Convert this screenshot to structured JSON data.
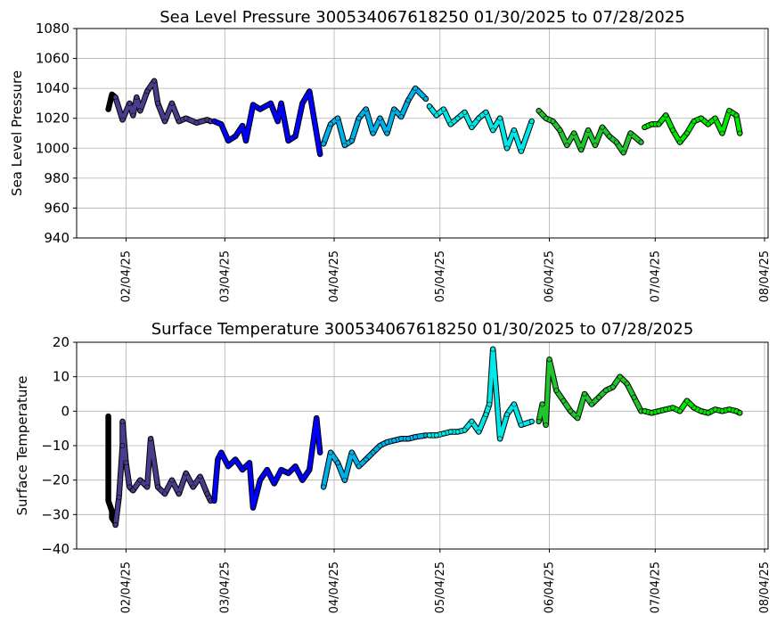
{
  "chart_data": [
    {
      "type": "scatter",
      "title": "Sea Level Pressure 300534067618250  01/30/2025 to 07/28/2025",
      "xlabel": "",
      "ylabel": "Sea Level Pressure",
      "xlim": [
        "2025-01-21",
        "2025-08-05"
      ],
      "ylim": [
        940,
        1080
      ],
      "yticks": [
        940,
        960,
        980,
        1000,
        1020,
        1040,
        1060,
        1080
      ],
      "xticks": [
        "02/04/25",
        "03/04/25",
        "04/04/25",
        "05/04/25",
        "06/04/25",
        "07/04/25",
        "08/04/25"
      ],
      "grid": true,
      "series": [
        {
          "color": "#000000",
          "x": [
            "2025-01-30",
            "2025-01-31",
            "2025-02-01"
          ],
          "y": [
            1026,
            1036,
            1034
          ]
        },
        {
          "color": "#483d8b",
          "x": [
            "2025-02-01",
            "2025-02-03",
            "2025-02-05",
            "2025-02-06",
            "2025-02-07",
            "2025-02-08",
            "2025-02-10",
            "2025-02-12",
            "2025-02-13",
            "2025-02-15",
            "2025-02-17",
            "2025-02-19",
            "2025-02-21",
            "2025-02-24",
            "2025-02-27",
            "2025-02-28"
          ],
          "y": [
            1034,
            1019,
            1030,
            1022,
            1034,
            1025,
            1038,
            1045,
            1030,
            1018,
            1030,
            1018,
            1020,
            1017,
            1019,
            1018
          ]
        },
        {
          "color": "#0000ff",
          "x": [
            "2025-03-01",
            "2025-03-03",
            "2025-03-05",
            "2025-03-07",
            "2025-03-09",
            "2025-03-10",
            "2025-03-12",
            "2025-03-14",
            "2025-03-17",
            "2025-03-19",
            "2025-03-20",
            "2025-03-22",
            "2025-03-24",
            "2025-03-26",
            "2025-03-28",
            "2025-03-31"
          ],
          "y": [
            1018,
            1016,
            1005,
            1008,
            1015,
            1005,
            1029,
            1026,
            1030,
            1018,
            1030,
            1005,
            1008,
            1030,
            1038,
            996
          ]
        },
        {
          "color": "#00b0e8",
          "x": [
            "2025-04-01",
            "2025-04-03",
            "2025-04-05",
            "2025-04-07",
            "2025-04-09",
            "2025-04-11",
            "2025-04-13",
            "2025-04-15",
            "2025-04-17",
            "2025-04-19",
            "2025-04-21",
            "2025-04-23",
            "2025-04-25",
            "2025-04-27",
            "2025-04-30"
          ],
          "y": [
            1003,
            1016,
            1020,
            1002,
            1005,
            1020,
            1026,
            1010,
            1020,
            1010,
            1026,
            1021,
            1032,
            1040,
            1033
          ]
        },
        {
          "color": "#00e8e8",
          "x": [
            "2025-05-01",
            "2025-05-03",
            "2025-05-05",
            "2025-05-07",
            "2025-05-09",
            "2025-05-11",
            "2025-05-13",
            "2025-05-15",
            "2025-05-17",
            "2025-05-19",
            "2025-05-21",
            "2025-05-23",
            "2025-05-25",
            "2025-05-27",
            "2025-05-30"
          ],
          "y": [
            1028,
            1022,
            1026,
            1016,
            1020,
            1024,
            1014,
            1020,
            1024,
            1012,
            1020,
            1000,
            1012,
            998,
            1018
          ]
        },
        {
          "color": "#22c42e",
          "x": [
            "2025-06-01",
            "2025-06-03",
            "2025-06-05",
            "2025-06-07",
            "2025-06-09",
            "2025-06-11",
            "2025-06-13",
            "2025-06-15",
            "2025-06-17",
            "2025-06-19",
            "2025-06-21",
            "2025-06-23",
            "2025-06-25",
            "2025-06-27",
            "2025-06-30"
          ],
          "y": [
            1025,
            1020,
            1018,
            1012,
            1002,
            1010,
            999,
            1012,
            1002,
            1014,
            1008,
            1004,
            997,
            1010,
            1004
          ]
        },
        {
          "color": "#00e800",
          "x": [
            "2025-07-01",
            "2025-07-03",
            "2025-07-05",
            "2025-07-07",
            "2025-07-09",
            "2025-07-11",
            "2025-07-13",
            "2025-07-15",
            "2025-07-17",
            "2025-07-19",
            "2025-07-21",
            "2025-07-23",
            "2025-07-25",
            "2025-07-27",
            "2025-07-28"
          ],
          "y": [
            1014,
            1016,
            1016,
            1022,
            1012,
            1004,
            1010,
            1018,
            1020,
            1016,
            1020,
            1010,
            1025,
            1022,
            1010
          ]
        }
      ]
    },
    {
      "type": "scatter",
      "title": "Surface Temperature 300534067618250  01/30/2025 to 07/28/2025",
      "xlabel": "",
      "ylabel": "Surface Temperature",
      "xlim": [
        "2025-01-21",
        "2025-08-05"
      ],
      "ylim": [
        -40,
        20
      ],
      "yticks": [
        -40,
        -30,
        -20,
        -10,
        0,
        10,
        20
      ],
      "xticks": [
        "02/04/25",
        "03/04/25",
        "04/04/25",
        "05/04/25",
        "06/04/25",
        "07/04/25",
        "08/04/25"
      ],
      "grid": true,
      "series": [
        {
          "color": "#000000",
          "x": [
            "2025-01-30",
            "2025-01-30",
            "2025-01-31",
            "2025-01-31",
            "2025-02-01",
            "2025-02-01"
          ],
          "y": [
            -1.5,
            -26,
            -29,
            -31,
            -32.5,
            -33
          ]
        },
        {
          "color": "#483d8b",
          "x": [
            "2025-02-01",
            "2025-02-02",
            "2025-02-03",
            "2025-02-03",
            "2025-02-04",
            "2025-02-05",
            "2025-02-06",
            "2025-02-08",
            "2025-02-10",
            "2025-02-11",
            "2025-02-13",
            "2025-02-15",
            "2025-02-17",
            "2025-02-19",
            "2025-02-21",
            "2025-02-23",
            "2025-02-25",
            "2025-02-27",
            "2025-02-28"
          ],
          "y": [
            -33,
            -25,
            -10,
            -3,
            -15,
            -22,
            -23,
            -20,
            -22,
            -8,
            -22,
            -24,
            -20,
            -24,
            -18,
            -22,
            -19,
            -24,
            -26
          ]
        },
        {
          "color": "#0000ff",
          "x": [
            "2025-03-01",
            "2025-03-02",
            "2025-03-03",
            "2025-03-05",
            "2025-03-07",
            "2025-03-09",
            "2025-03-11",
            "2025-03-12",
            "2025-03-14",
            "2025-03-16",
            "2025-03-18",
            "2025-03-20",
            "2025-03-22",
            "2025-03-24",
            "2025-03-26",
            "2025-03-28",
            "2025-03-30",
            "2025-03-31"
          ],
          "y": [
            -26,
            -14,
            -12,
            -16,
            -14,
            -17,
            -15,
            -28,
            -20,
            -17,
            -21,
            -17,
            -18,
            -16,
            -20,
            -17,
            -2,
            -12
          ]
        },
        {
          "color": "#00b0e8",
          "x": [
            "2025-04-01",
            "2025-04-03",
            "2025-04-05",
            "2025-04-07",
            "2025-04-09",
            "2025-04-11",
            "2025-04-13",
            "2025-04-15",
            "2025-04-17",
            "2025-04-19",
            "2025-04-21",
            "2025-04-23",
            "2025-04-25",
            "2025-04-27",
            "2025-04-30"
          ],
          "y": [
            -22,
            -12,
            -15,
            -20,
            -12,
            -16,
            -14,
            -12,
            -10,
            -9,
            -8.5,
            -8,
            -8,
            -7.5,
            -7
          ]
        },
        {
          "color": "#00e8e8",
          "x": [
            "2025-05-01",
            "2025-05-03",
            "2025-05-05",
            "2025-05-07",
            "2025-05-09",
            "2025-05-11",
            "2025-05-13",
            "2025-05-15",
            "2025-05-17",
            "2025-05-18",
            "2025-05-19",
            "2025-05-21",
            "2025-05-23",
            "2025-05-25",
            "2025-05-27",
            "2025-05-30"
          ],
          "y": [
            -7,
            -7,
            -6.5,
            -6,
            -6,
            -5.5,
            -3,
            -6,
            -1,
            2,
            18,
            -8,
            -1,
            2,
            -4,
            -3
          ]
        },
        {
          "color": "#22c42e",
          "x": [
            "2025-06-01",
            "2025-06-02",
            "2025-06-03",
            "2025-06-04",
            "2025-06-06",
            "2025-06-08",
            "2025-06-10",
            "2025-06-12",
            "2025-06-14",
            "2025-06-16",
            "2025-06-18",
            "2025-06-20",
            "2025-06-22",
            "2025-06-24",
            "2025-06-26",
            "2025-06-28",
            "2025-06-30"
          ],
          "y": [
            -3,
            2,
            -4,
            15,
            6,
            3,
            0,
            -2,
            5,
            2,
            4,
            6,
            7,
            10,
            8,
            4,
            0
          ]
        },
        {
          "color": "#00e800",
          "x": [
            "2025-07-01",
            "2025-07-03",
            "2025-07-05",
            "2025-07-07",
            "2025-07-09",
            "2025-07-11",
            "2025-07-13",
            "2025-07-15",
            "2025-07-17",
            "2025-07-19",
            "2025-07-21",
            "2025-07-23",
            "2025-07-25",
            "2025-07-27",
            "2025-07-28"
          ],
          "y": [
            0,
            -0.5,
            0,
            0.5,
            1,
            0,
            3,
            1,
            0,
            -0.5,
            0.5,
            0,
            0.5,
            0,
            -0.5
          ]
        }
      ]
    }
  ]
}
